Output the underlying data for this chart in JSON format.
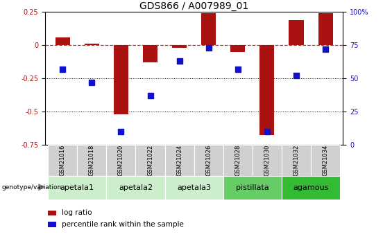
{
  "title": "GDS866 / A007989_01",
  "samples": [
    "GSM21016",
    "GSM21018",
    "GSM21020",
    "GSM21022",
    "GSM21024",
    "GSM21026",
    "GSM21028",
    "GSM21030",
    "GSM21032",
    "GSM21034"
  ],
  "log_ratio": [
    0.06,
    0.01,
    -0.52,
    -0.13,
    -0.02,
    0.24,
    -0.05,
    -0.68,
    0.19,
    0.24
  ],
  "percentile_rank": [
    57,
    47,
    10,
    37,
    63,
    73,
    57,
    10,
    52,
    72
  ],
  "ylim_left": [
    -0.75,
    0.25
  ],
  "ylim_right": [
    0,
    100
  ],
  "yticks_left": [
    -0.75,
    -0.5,
    -0.25,
    0.0,
    0.25
  ],
  "yticks_right": [
    0,
    25,
    50,
    75,
    100
  ],
  "hlines": [
    -0.25,
    -0.5
  ],
  "bar_color": "#aa1111",
  "dot_color": "#1111cc",
  "dashed_line_color": "#cc2222",
  "groups": [
    {
      "label": "apetala1",
      "samples": [
        "GSM21016",
        "GSM21018"
      ],
      "color": "#cceecc"
    },
    {
      "label": "apetala2",
      "samples": [
        "GSM21020",
        "GSM21022"
      ],
      "color": "#cceecc"
    },
    {
      "label": "apetala3",
      "samples": [
        "GSM21024",
        "GSM21026"
      ],
      "color": "#cceecc"
    },
    {
      "label": "pistillata",
      "samples": [
        "GSM21028",
        "GSM21030"
      ],
      "color": "#66cc66"
    },
    {
      "label": "agamous",
      "samples": [
        "GSM21032",
        "GSM21034"
      ],
      "color": "#33bb33"
    }
  ],
  "bar_width": 0.5,
  "dot_size": 30,
  "title_fontsize": 10,
  "tick_fontsize": 7,
  "sample_fontsize": 6,
  "group_fontsize": 8,
  "legend_fontsize": 7.5
}
